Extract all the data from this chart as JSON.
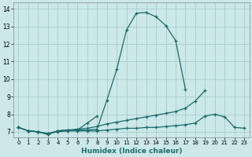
{
  "xlabel": "Humidex (Indice chaleur)",
  "bg_color": "#cce8e8",
  "line_color": "#1a6b6b",
  "grid_color": "#aacccc",
  "xlim": [
    -0.5,
    23.5
  ],
  "ylim": [
    6.7,
    14.35
  ],
  "yticks": [
    7,
    8,
    9,
    10,
    11,
    12,
    13,
    14
  ],
  "xticks": [
    0,
    1,
    2,
    3,
    4,
    5,
    6,
    7,
    8,
    9,
    10,
    11,
    12,
    13,
    14,
    15,
    16,
    17,
    18,
    19,
    20,
    21,
    22,
    23
  ],
  "series": [
    {
      "x": [
        0,
        1,
        2,
        3,
        4,
        5,
        6,
        7,
        8,
        9,
        10,
        11,
        12,
        13,
        14,
        15,
        16,
        17
      ],
      "y": [
        7.25,
        7.05,
        7.0,
        6.85,
        7.05,
        7.1,
        7.1,
        7.1,
        7.15,
        8.8,
        10.55,
        12.8,
        13.75,
        13.8,
        13.55,
        13.05,
        12.2,
        9.4
      ]
    },
    {
      "x": [
        0,
        1,
        2,
        3,
        4,
        5,
        6,
        7,
        8
      ],
      "y": [
        7.25,
        7.05,
        7.0,
        6.85,
        7.05,
        7.1,
        7.1,
        7.5,
        7.9
      ]
    },
    {
      "x": [
        0,
        1,
        2,
        3,
        4,
        5,
        6,
        7,
        8,
        9,
        10,
        11,
        12,
        13,
        14,
        15,
        16,
        17,
        18,
        19
      ],
      "y": [
        7.25,
        7.05,
        7.0,
        6.9,
        7.05,
        7.1,
        7.15,
        7.2,
        7.3,
        7.45,
        7.55,
        7.65,
        7.75,
        7.85,
        7.95,
        8.05,
        8.15,
        8.35,
        8.75,
        9.35
      ]
    },
    {
      "x": [
        0,
        1,
        2,
        3,
        4,
        5,
        6,
        7,
        8,
        9,
        10,
        11,
        12,
        13,
        14,
        15,
        16,
        17,
        18,
        19,
        20,
        21,
        22,
        23
      ],
      "y": [
        7.25,
        7.05,
        7.0,
        6.9,
        7.0,
        7.05,
        7.05,
        7.05,
        7.05,
        7.1,
        7.15,
        7.2,
        7.2,
        7.25,
        7.25,
        7.3,
        7.35,
        7.4,
        7.5,
        7.9,
        8.0,
        7.85,
        7.25,
        7.2
      ]
    }
  ]
}
